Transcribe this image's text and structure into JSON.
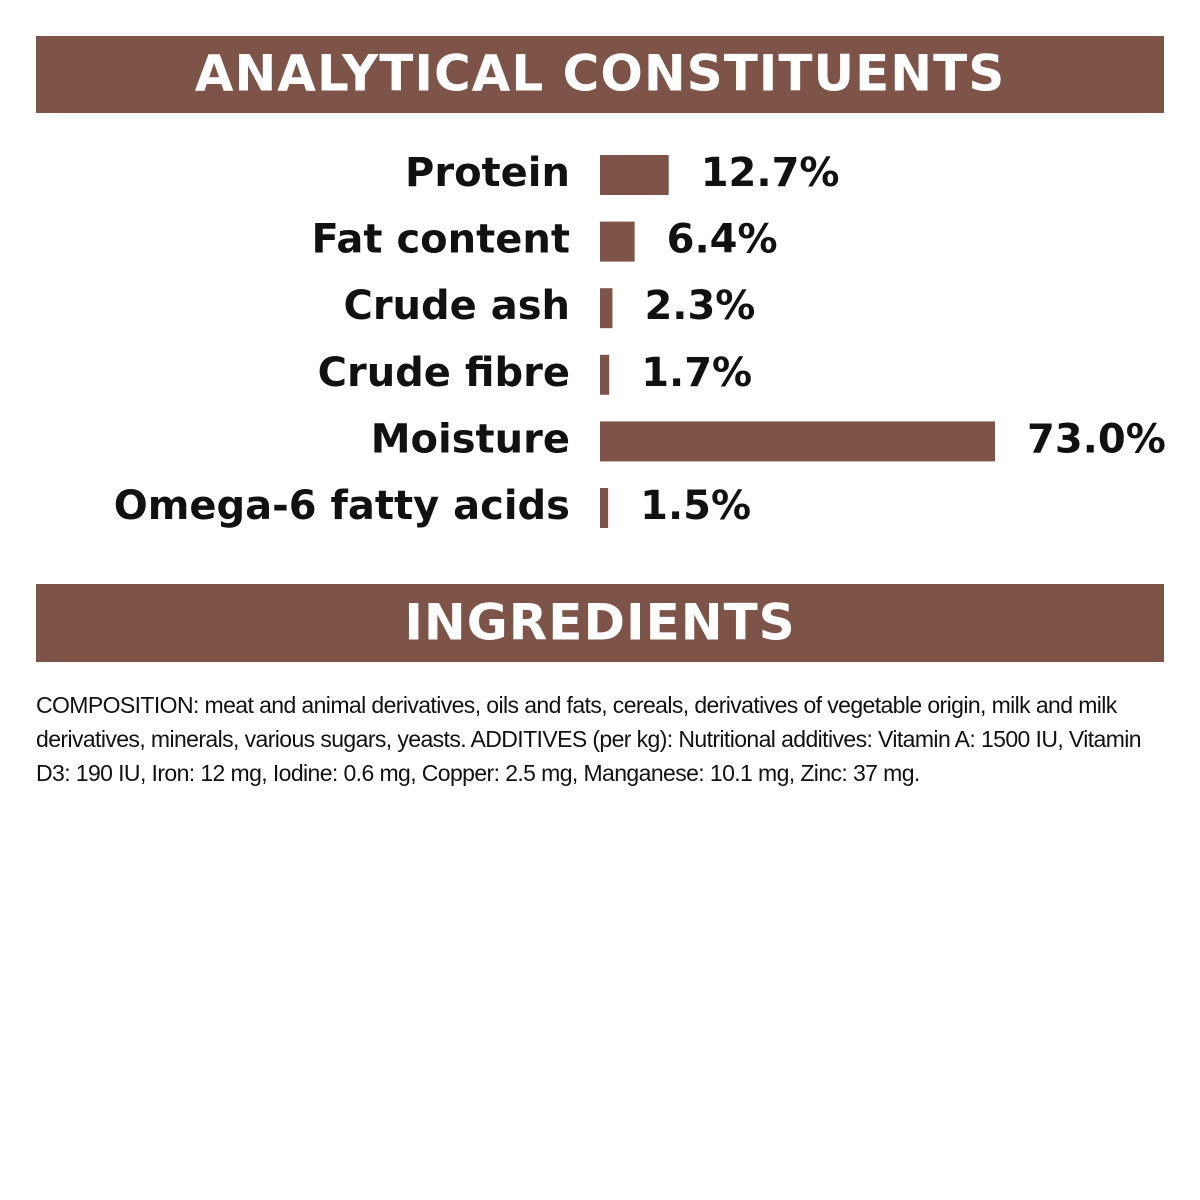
{
  "chart_data": {
    "type": "bar",
    "orientation": "horizontal",
    "title": "ANALYTICAL CONSTITUENTS",
    "categories": [
      "Protein",
      "Fat content",
      "Crude ash",
      "Crude fibre",
      "Moisture",
      "Omega-6 fatty acids"
    ],
    "values": [
      12.7,
      6.4,
      2.3,
      1.7,
      73.0,
      1.5
    ],
    "value_labels": [
      "12.7%",
      "6.4%",
      "2.3%",
      "1.7%",
      "73.0%",
      "1.5%"
    ],
    "color": "#7f5448"
  },
  "ingredients": {
    "title": "INGREDIENTS",
    "text": "COMPOSITION: meat and animal derivatives, oils and fats, cereals, derivatives of vegetable origin, milk and milk derivatives, minerals, various sugars, yeasts. ADDITIVES (per kg): Nutritional additives: Vitamin A: 1500 IU, Vitamin D3: 190 IU, Iron: 12 mg, Iodine: 0.6 mg, Copper: 2.5 mg, Manganese: 10.1 mg, Zinc: 37 mg."
  }
}
